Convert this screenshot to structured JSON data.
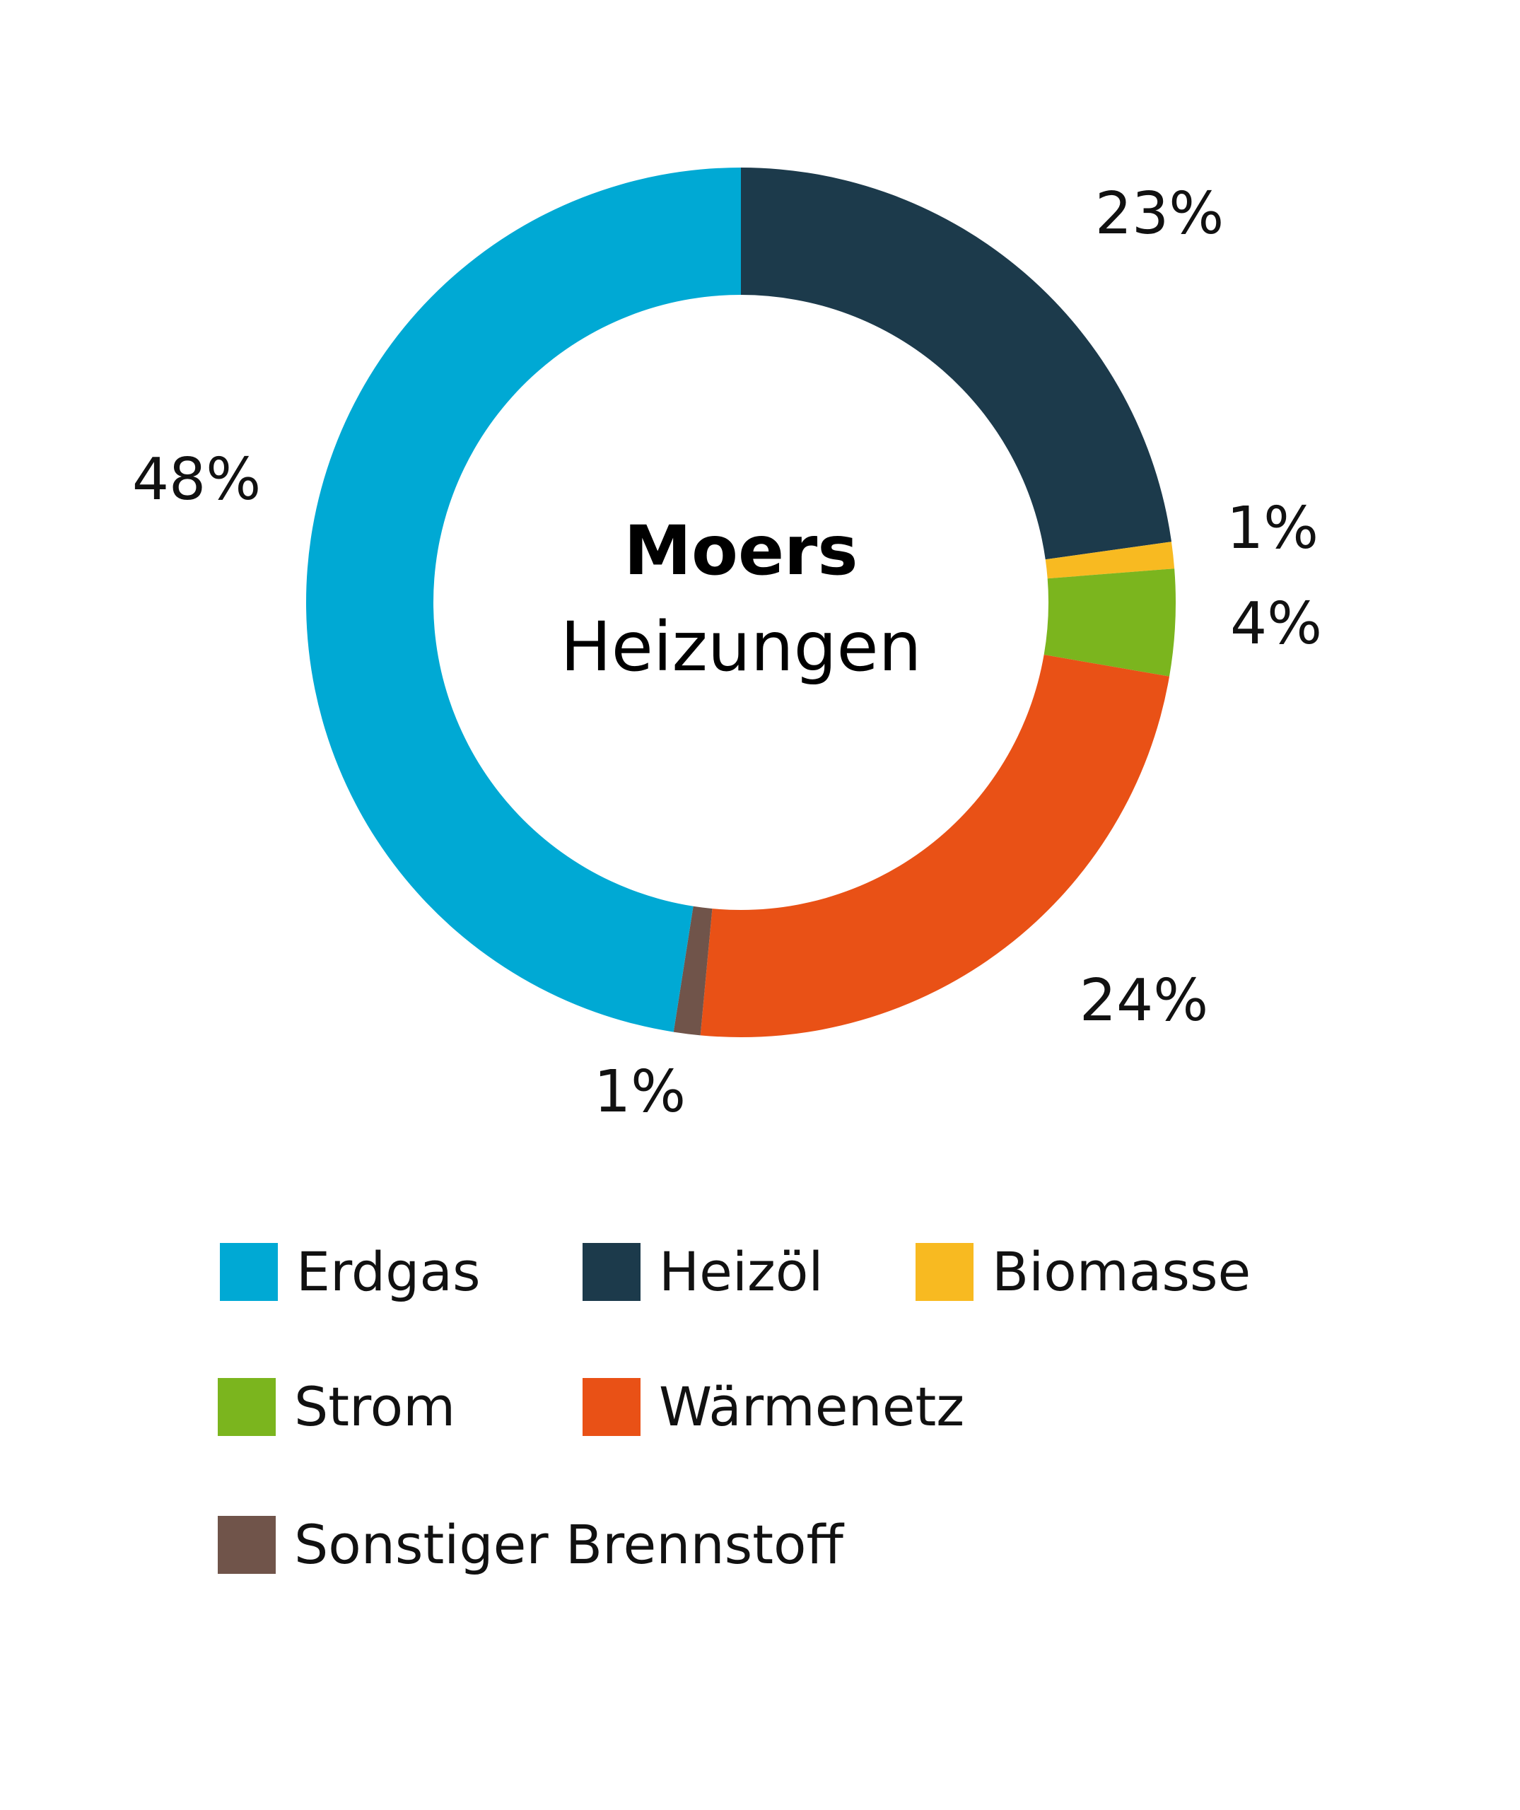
{
  "colors": {
    "Erdgas": "#00a9d4",
    "Heizöl": "#1c3a4b",
    "Biomasse": "#f8ba21",
    "Strom": "#7bb51e",
    "Wärmenetz": "#e95116",
    "Sonstiger Brennstoff": "#70544a"
  },
  "chart_data": {
    "type": "pie",
    "style": "donut",
    "title": "Moers",
    "subtitle": "Heizungen",
    "start_angle_deg": 0,
    "direction": "clockwise",
    "categories": [
      "Heizöl",
      "Biomasse",
      "Strom",
      "Wärmenetz",
      "Sonstiger Brennstoff",
      "Erdgas"
    ],
    "values": [
      23,
      1,
      4,
      24,
      1,
      48
    ],
    "labels": [
      "23%",
      "1%",
      "4%",
      "24%",
      "1%",
      "48%"
    ],
    "legend_placement": "bottom",
    "legend": [
      "Erdgas",
      "Heizöl",
      "Biomasse",
      "Strom",
      "Wärmenetz",
      "Sonstiger Brennstoff"
    ]
  }
}
